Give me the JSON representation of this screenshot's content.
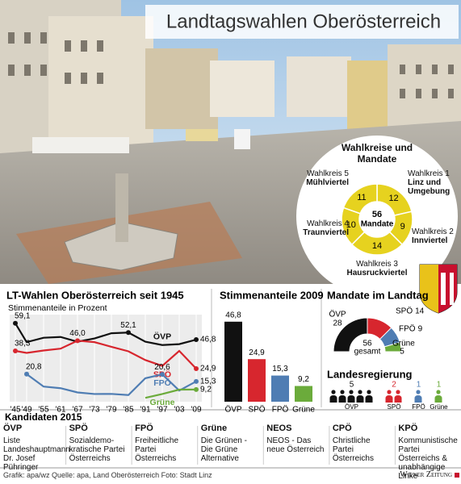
{
  "title": "Landtagswahlen Oberösterreich",
  "chart_data": [
    {
      "type": "donut",
      "title": "Wahlkreise und Mandate",
      "categories": [
        "Wahlkreis 1",
        "Wahlkreis 2",
        "Wahlkreis 3",
        "Wahlkreis 4",
        "Wahlkreis 5"
      ],
      "descriptions": [
        "Linz und Umgebung",
        "Innviertel",
        "Hausruckviertel",
        "Traunviertel",
        "Mühlviertel"
      ],
      "values": [
        12,
        9,
        14,
        10,
        11
      ],
      "color": "#e6d21f",
      "center_value": 56,
      "center_label": "Mandate"
    },
    {
      "type": "line",
      "title": "LT-Wahlen Oberösterreich seit 1945",
      "subtitle": "Stimmenanteile in Prozent",
      "x": [
        1945,
        1949,
        1955,
        1961,
        1967,
        1973,
        1979,
        1985,
        1991,
        1997,
        2003,
        2009
      ],
      "xlim": [
        1943,
        2011
      ],
      "xticks": [
        {
          "value": 1945,
          "label": "'45"
        },
        {
          "value": 1949,
          "label": "'49"
        },
        {
          "value": 1955,
          "label": "'55"
        },
        {
          "value": 1961,
          "label": "'61"
        },
        {
          "value": 1967,
          "label": "'67"
        },
        {
          "value": 1973,
          "label": "'73"
        },
        {
          "value": 1979,
          "label": "'79"
        },
        {
          "value": 1985,
          "label": "'85"
        },
        {
          "value": 1991,
          "label": "'91"
        },
        {
          "value": 1997,
          "label": "'97"
        },
        {
          "value": 2003,
          "label": "'03"
        },
        {
          "value": 2009,
          "label": "'09"
        }
      ],
      "ylim": [
        0,
        62
      ],
      "grid": true,
      "series": [
        {
          "name": "ÖVP",
          "color": "#111111",
          "values": [
            59.1,
            44.9,
            48.2,
            48.8,
            45.2,
            47.7,
            51.6,
            52.1,
            45.2,
            42.7,
            43.4,
            46.8
          ],
          "value_labels": [
            "59,1",
            null,
            null,
            null,
            null,
            null,
            null,
            "52,1",
            null,
            null,
            null,
            "46,8"
          ]
        },
        {
          "name": "SPÖ",
          "color": "#d7262e",
          "values": [
            38.3,
            36.8,
            38.6,
            40.0,
            46.0,
            44.9,
            41.4,
            38.0,
            31.4,
            27.0,
            38.3,
            24.9
          ],
          "value_labels": [
            "38,3",
            null,
            null,
            null,
            "46,0",
            null,
            null,
            null,
            null,
            null,
            null,
            "24,9"
          ]
        },
        {
          "name": "FPÖ",
          "color": "#4f7db3",
          "values": [
            null,
            20.8,
            11.4,
            10.2,
            7.0,
            5.8,
            5.9,
            5.0,
            17.7,
            20.6,
            8.4,
            15.3
          ],
          "value_labels": [
            null,
            "20,8",
            null,
            null,
            null,
            null,
            null,
            null,
            null,
            "20,6",
            null,
            "15,3"
          ]
        },
        {
          "name": "Grüne",
          "color": "#6bab3b",
          "values": [
            null,
            null,
            null,
            null,
            null,
            null,
            null,
            null,
            2.9,
            5.8,
            9.1,
            9.2
          ],
          "value_labels": [
            null,
            null,
            null,
            null,
            null,
            null,
            null,
            null,
            null,
            null,
            null,
            "9,2"
          ]
        }
      ]
    },
    {
      "type": "bar",
      "title": "Stimmenanteile 2009",
      "categories": [
        "ÖVP",
        "SPÖ",
        "FPÖ",
        "Grüne"
      ],
      "values": [
        46.8,
        24.9,
        15.3,
        9.2
      ],
      "value_labels": [
        "46,8",
        "24,9",
        "15,3",
        "9,2"
      ],
      "colors": [
        "#111111",
        "#d7262e",
        "#4f7db3",
        "#6bab3b"
      ],
      "ylim": [
        0,
        50
      ]
    },
    {
      "type": "half-donut",
      "title": "Mandate im Landtag",
      "categories": [
        "ÖVP",
        "SPÖ",
        "FPÖ",
        "Grüne"
      ],
      "values": [
        28,
        14,
        9,
        5
      ],
      "colors": [
        "#111111",
        "#d7262e",
        "#4f7db3",
        "#6bab3b"
      ],
      "center_value": 56,
      "center_label": "gesamt"
    },
    {
      "type": "pictogram",
      "title": "Landesregierung",
      "categories": [
        "ÖVP",
        "SPÖ",
        "FPÖ",
        "Grüne"
      ],
      "values": [
        5,
        2,
        1,
        1
      ],
      "colors": [
        "#111111",
        "#d7262e",
        "#4f7db3",
        "#6bab3b"
      ]
    }
  ],
  "candidates": {
    "title": "Kandidaten 2015",
    "items": [
      {
        "party": "ÖVP",
        "text": "Liste Landeshauptmann Dr. Josef Pühringer"
      },
      {
        "party": "SPÖ",
        "text": "Sozialdemo-kratische Partei Österreichs"
      },
      {
        "party": "FPÖ",
        "text": "Freiheitliche Partei Österreichs"
      },
      {
        "party": "Grüne",
        "text": "Die Grünen - Die Grüne Alternative"
      },
      {
        "party": "NEOS",
        "text": "NEOS - Das neue Österreich"
      },
      {
        "party": "CPÖ",
        "text": "Christliche Partei Österreichs"
      },
      {
        "party": "KPÖ",
        "text": "Kommunistische Partei Österreichs & unabhängige Linke"
      }
    ]
  },
  "footer": {
    "credits": "Grafik: apa/wz Quelle: apa, Land Oberösterreich Foto: Stadt Linz",
    "brand": "Wiener Zeitung"
  }
}
